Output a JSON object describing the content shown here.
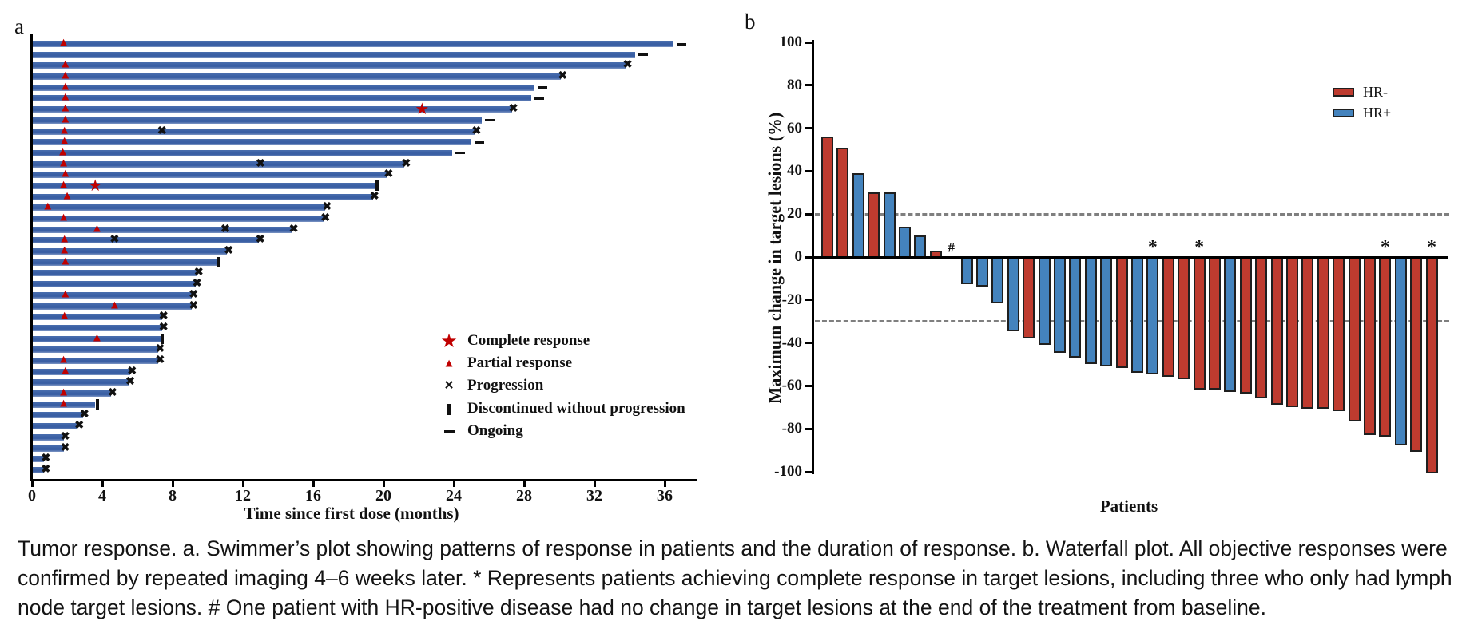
{
  "figure": {
    "panel_a_label": "a",
    "panel_b_label": "b"
  },
  "caption": {
    "line1": "Tumor response. a. Swimmer’s plot showing patterns of response in patients and the duration of response. b. Waterfall plot. All objective responses were",
    "line2": "confirmed by repeated imaging 4–6 weeks later. * Represents patients achieving complete response in target lesions, including three who only had lymph",
    "line3": "node target lesions. # One patient with HR-positive disease had no change in target lesions at the end of the treatment from baseline."
  },
  "chart_data": [
    {
      "type": "bar",
      "variant": "swimmer",
      "title": "",
      "xlabel": "Time since first dose (months)",
      "ylabel": "",
      "x_ticks": [
        0,
        4,
        8,
        12,
        16,
        20,
        24,
        28,
        32,
        36
      ],
      "xlim": [
        0,
        37.8
      ],
      "grid": false,
      "bar_color": "#3A5FA4",
      "marker_color": "#C00000",
      "progression_color": "#111111",
      "legend_position": "lower right of panel",
      "legend": [
        {
          "symbol": "star",
          "label": "Complete response"
        },
        {
          "symbol": "triangle",
          "label": "Partial response"
        },
        {
          "symbol": "x",
          "label": "Progression"
        },
        {
          "symbol": "tick",
          "label": "Discontinued without progression"
        },
        {
          "symbol": "dash",
          "label": "Ongoing"
        }
      ],
      "patients": [
        {
          "months": 36.5,
          "end": "ongoing",
          "pr": [
            1.8
          ]
        },
        {
          "months": 34.3,
          "end": "ongoing"
        },
        {
          "months": 33.8,
          "end": "progression",
          "pr": [
            1.9
          ]
        },
        {
          "months": 30.1,
          "end": "progression",
          "pr": [
            1.9
          ]
        },
        {
          "months": 28.6,
          "end": "ongoing",
          "pr": [
            1.9
          ]
        },
        {
          "months": 28.4,
          "end": "ongoing",
          "pr": [
            1.9
          ]
        },
        {
          "months": 27.3,
          "end": "progression",
          "pr": [
            1.9
          ],
          "cr": [
            22.2
          ]
        },
        {
          "months": 25.6,
          "end": "ongoing",
          "pr": [
            1.9
          ]
        },
        {
          "months": 25.2,
          "end": "progression",
          "pr": [
            1.85
          ],
          "x": [
            7.4
          ]
        },
        {
          "months": 25.0,
          "end": "ongoing",
          "pr": [
            1.85
          ]
        },
        {
          "months": 23.9,
          "end": "ongoing",
          "pr": [
            1.75
          ]
        },
        {
          "months": 21.2,
          "end": "progression",
          "pr": [
            1.8
          ],
          "x": [
            13.0
          ]
        },
        {
          "months": 20.2,
          "end": "progression",
          "pr": [
            1.9
          ]
        },
        {
          "months": 19.5,
          "end": "discontinued",
          "pr": [
            1.8
          ],
          "cr": [
            3.6
          ]
        },
        {
          "months": 19.4,
          "end": "progression",
          "pr": [
            2.0
          ]
        },
        {
          "months": 16.7,
          "end": "progression",
          "pr": [
            0.9
          ]
        },
        {
          "months": 16.6,
          "end": "progression",
          "pr": [
            1.8
          ]
        },
        {
          "months": 14.8,
          "end": "progression",
          "pr": [
            3.7
          ],
          "x": [
            11.0
          ]
        },
        {
          "months": 12.9,
          "end": "progression",
          "pr": [
            1.85
          ],
          "x": [
            4.7
          ]
        },
        {
          "months": 11.1,
          "end": "progression",
          "pr": [
            1.85
          ]
        },
        {
          "months": 10.5,
          "end": "discontinued",
          "pr": [
            1.9
          ]
        },
        {
          "months": 9.4,
          "end": "progression"
        },
        {
          "months": 9.3,
          "end": "progression"
        },
        {
          "months": 9.1,
          "end": "progression",
          "pr": [
            1.9
          ]
        },
        {
          "months": 9.1,
          "end": "progression",
          "pr": [
            4.7
          ]
        },
        {
          "months": 7.4,
          "end": "progression",
          "pr": [
            1.85
          ]
        },
        {
          "months": 7.4,
          "end": "progression"
        },
        {
          "months": 7.3,
          "end": "discontinued",
          "pr": [
            3.7
          ]
        },
        {
          "months": 7.2,
          "end": "progression"
        },
        {
          "months": 7.2,
          "end": "progression",
          "pr": [
            1.8
          ]
        },
        {
          "months": 5.6,
          "end": "progression",
          "pr": [
            1.9
          ]
        },
        {
          "months": 5.5,
          "end": "progression"
        },
        {
          "months": 4.5,
          "end": "progression",
          "pr": [
            1.8
          ]
        },
        {
          "months": 3.6,
          "end": "discontinued",
          "pr": [
            1.8
          ]
        },
        {
          "months": 2.9,
          "end": "progression"
        },
        {
          "months": 2.6,
          "end": "progression"
        },
        {
          "months": 1.8,
          "end": "progression"
        },
        {
          "months": 1.8,
          "end": "progression"
        },
        {
          "months": 0.7,
          "end": "progression"
        },
        {
          "months": 0.7,
          "end": "progression"
        }
      ]
    },
    {
      "type": "bar",
      "variant": "waterfall",
      "title": "",
      "xlabel": "Patients",
      "ylabel": "Maximum change in target lesions (%)",
      "ylim": [
        -100,
        100
      ],
      "y_ticks": [
        100,
        80,
        60,
        40,
        20,
        0,
        -20,
        -40,
        -60,
        -80,
        -100
      ],
      "grid": false,
      "reference_lines": [
        20,
        -30
      ],
      "reference_line_color": "#7f7f7f",
      "legend_position": "upper right",
      "legend": [
        {
          "label": "HR-",
          "color": "#BE3B2F"
        },
        {
          "label": "HR+",
          "color": "#4483BD"
        }
      ],
      "colors": {
        "HR-": "#BE3B2F",
        "HR+": "#4483BD"
      },
      "bars": [
        {
          "value": 56,
          "group": "HR-"
        },
        {
          "value": 51,
          "group": "HR-"
        },
        {
          "value": 39,
          "group": "HR+"
        },
        {
          "value": 30,
          "group": "HR-"
        },
        {
          "value": 30,
          "group": "HR+"
        },
        {
          "value": 14,
          "group": "HR+"
        },
        {
          "value": 10,
          "group": "HR+"
        },
        {
          "value": 3,
          "group": "HR-"
        },
        {
          "value": 0,
          "group": "HR+",
          "annotation": "#"
        },
        {
          "value": -12,
          "group": "HR+"
        },
        {
          "value": -13,
          "group": "HR+"
        },
        {
          "value": -21,
          "group": "HR+"
        },
        {
          "value": -34,
          "group": "HR+"
        },
        {
          "value": -37,
          "group": "HR-"
        },
        {
          "value": -40,
          "group": "HR+"
        },
        {
          "value": -44,
          "group": "HR+"
        },
        {
          "value": -46,
          "group": "HR+"
        },
        {
          "value": -49,
          "group": "HR+"
        },
        {
          "value": -50,
          "group": "HR+"
        },
        {
          "value": -51,
          "group": "HR-"
        },
        {
          "value": -53,
          "group": "HR+"
        },
        {
          "value": -54,
          "group": "HR+",
          "annotation": "*"
        },
        {
          "value": -55,
          "group": "HR-"
        },
        {
          "value": -56,
          "group": "HR-"
        },
        {
          "value": -61,
          "group": "HR-",
          "annotation": "*"
        },
        {
          "value": -61,
          "group": "HR-"
        },
        {
          "value": -62,
          "group": "HR+"
        },
        {
          "value": -63,
          "group": "HR-"
        },
        {
          "value": -65,
          "group": "HR-"
        },
        {
          "value": -68,
          "group": "HR-"
        },
        {
          "value": -69,
          "group": "HR-"
        },
        {
          "value": -70,
          "group": "HR-"
        },
        {
          "value": -70,
          "group": "HR-"
        },
        {
          "value": -71,
          "group": "HR-"
        },
        {
          "value": -76,
          "group": "HR-"
        },
        {
          "value": -82,
          "group": "HR-"
        },
        {
          "value": -83,
          "group": "HR-",
          "annotation": "*"
        },
        {
          "value": -87,
          "group": "HR+"
        },
        {
          "value": -90,
          "group": "HR-"
        },
        {
          "value": -100,
          "group": "HR-",
          "annotation": "*"
        }
      ]
    }
  ]
}
